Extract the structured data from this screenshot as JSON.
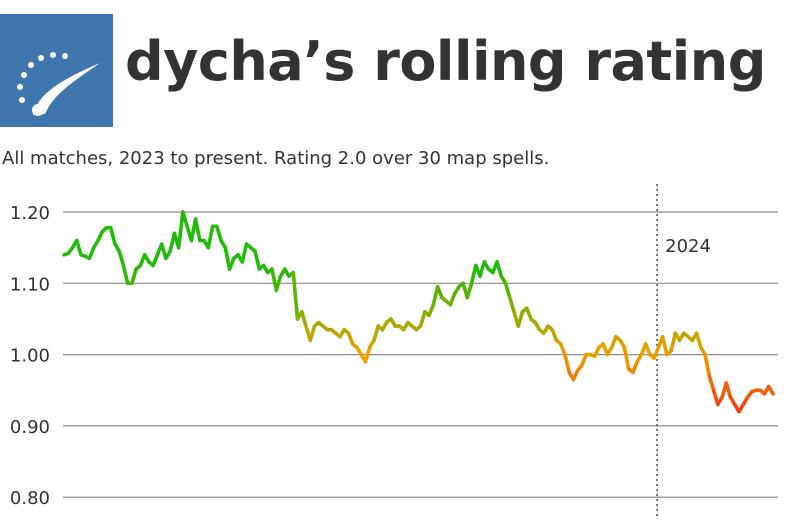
{
  "header": {
    "title": "dycha’s rolling rating",
    "logo_icon": "speedometer-logo-icon",
    "logo_color": "#3f76ad"
  },
  "subtitle": "All matches, 2023 to present. Rating 2.0 over 30 map spells.",
  "chart_data": {
    "type": "line",
    "title": "dycha’s rolling rating",
    "subtitle": "All matches, 2023 to present. Rating 2.0 over 30 map spells.",
    "xlabel": "",
    "ylabel": "",
    "ylim": [
      0.8,
      1.22
    ],
    "yticks": [
      1.2,
      1.1,
      1.0,
      0.9,
      0.8
    ],
    "ytick_labels": [
      "1.20",
      "1.10",
      "1.00",
      "0.90",
      "0.80"
    ],
    "grid": true,
    "annotations": [
      {
        "label": "2024",
        "x_index": 139,
        "style": "dotted-vertical-line"
      }
    ],
    "color_scale": {
      "high": "#22bb0a",
      "mid": "#f0a000",
      "low": "#ee3a10"
    },
    "series": [
      {
        "values": [
          1.14,
          1.142,
          1.15,
          1.16,
          1.14,
          1.138,
          1.135,
          1.15,
          1.16,
          1.172,
          1.178,
          1.178,
          1.155,
          1.145,
          1.125,
          1.1,
          1.1,
          1.12,
          1.125,
          1.14,
          1.13,
          1.125,
          1.14,
          1.155,
          1.135,
          1.145,
          1.17,
          1.15,
          1.2,
          1.18,
          1.16,
          1.19,
          1.16,
          1.16,
          1.15,
          1.18,
          1.18,
          1.16,
          1.15,
          1.12,
          1.135,
          1.14,
          1.13,
          1.155,
          1.15,
          1.145,
          1.12,
          1.125,
          1.115,
          1.12,
          1.09,
          1.11,
          1.12,
          1.11,
          1.115,
          1.05,
          1.06,
          1.04,
          1.02,
          1.04,
          1.045,
          1.04,
          1.035,
          1.035,
          1.03,
          1.025,
          1.035,
          1.03,
          1.015,
          1.01,
          1.0,
          0.99,
          1.01,
          1.02,
          1.04,
          1.035,
          1.045,
          1.05,
          1.04,
          1.04,
          1.035,
          1.045,
          1.04,
          1.035,
          1.04,
          1.06,
          1.055,
          1.07,
          1.095,
          1.08,
          1.075,
          1.07,
          1.085,
          1.095,
          1.1,
          1.08,
          1.1,
          1.125,
          1.11,
          1.13,
          1.12,
          1.115,
          1.13,
          1.11,
          1.1,
          1.08,
          1.06,
          1.04,
          1.06,
          1.065,
          1.05,
          1.045,
          1.035,
          1.03,
          1.04,
          1.035,
          1.02,
          1.015,
          1.0,
          0.975,
          0.965,
          0.978,
          0.985,
          1.0,
          1.0,
          0.998,
          1.01,
          1.015,
          1.0,
          1.01,
          1.025,
          1.02,
          1.01,
          0.98,
          0.975,
          0.99,
          1.0,
          1.015,
          1.0,
          0.995,
          1.01,
          1.025,
          1.0,
          1.005,
          1.03,
          1.02,
          1.03,
          1.025,
          1.02,
          1.03,
          1.01,
          1.0,
          0.97,
          0.95,
          0.93,
          0.94,
          0.96,
          0.94,
          0.93,
          0.92,
          0.93,
          0.94,
          0.948,
          0.95,
          0.95,
          0.945,
          0.955,
          0.945
        ]
      }
    ]
  }
}
